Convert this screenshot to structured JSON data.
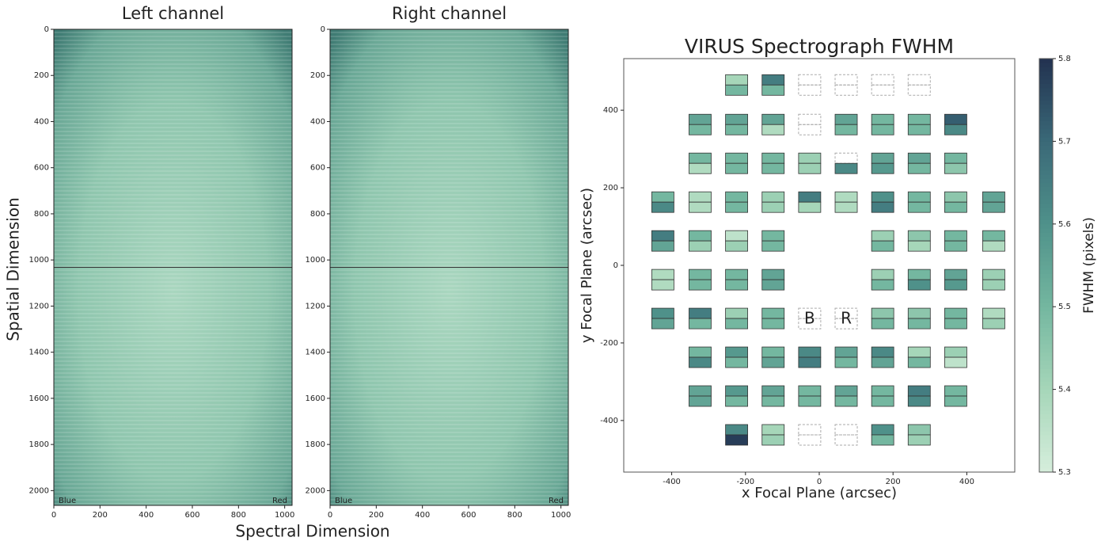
{
  "chart_data": [
    {
      "type": "image",
      "title": "Left channel",
      "xlabel": "Spectral Dimension",
      "ylabel": "Spatial Dimension",
      "xlim": [
        0,
        1032
      ],
      "ylim": [
        2064,
        0
      ],
      "xticks": [
        0,
        200,
        400,
        600,
        800,
        1000
      ],
      "yticks": [
        0,
        200,
        400,
        600,
        800,
        1000,
        1200,
        1400,
        1600,
        1800,
        2000
      ],
      "annotations": [
        {
          "text": "Blue",
          "color": "#2c3fe0"
        },
        {
          "text": "Red",
          "color": "#d62728"
        }
      ]
    },
    {
      "type": "image",
      "title": "Right channel",
      "xlim": [
        0,
        1032
      ],
      "ylim": [
        2064,
        0
      ],
      "xticks": [
        0,
        200,
        400,
        600,
        800,
        1000
      ],
      "yticks": [
        0,
        200,
        400,
        600,
        800,
        1000,
        1200,
        1400,
        1600,
        1800,
        2000
      ],
      "annotations": [
        {
          "text": "Blue",
          "color": "#2c3fe0"
        },
        {
          "text": "Red",
          "color": "#d62728"
        }
      ]
    },
    {
      "type": "ifu-grid",
      "title": "VIRUS Spectrograph FWHM",
      "xlabel": "x Focal Plane (arcsec)",
      "ylabel": "y Focal Plane (arcsec)",
      "colorbar_label": "FWHM (pixels)",
      "clim": [
        5.3,
        5.8
      ],
      "cticks": [
        5.3,
        5.4,
        5.5,
        5.6,
        5.7,
        5.8
      ],
      "colormap": [
        "#d6eedc",
        "#a6d6b9",
        "#74b7a0",
        "#4f918a",
        "#3a6978",
        "#223250"
      ],
      "xlim": [
        -530,
        530
      ],
      "ylim": [
        -533,
        533
      ],
      "xticks": [
        -400,
        -200,
        0,
        200,
        400
      ],
      "yticks": [
        -400,
        -200,
        0,
        200,
        400
      ],
      "annotations": [
        {
          "text": "B",
          "x": -26,
          "y": -137,
          "color": "#1f77b4"
        },
        {
          "text": "R",
          "x": 73,
          "y": -137,
          "color": "#e8141e"
        }
      ],
      "ifus": [
        {
          "x": -224,
          "y": 465,
          "fwhm": [
            5.4,
            5.5
          ]
        },
        {
          "x": -125,
          "y": 465,
          "fwhm": [
            5.65,
            5.5
          ]
        },
        {
          "x": -26,
          "y": 465,
          "fwhm": [
            null,
            null
          ]
        },
        {
          "x": 73,
          "y": 465,
          "fwhm": [
            null,
            null
          ]
        },
        {
          "x": 172,
          "y": 465,
          "fwhm": [
            null,
            null
          ]
        },
        {
          "x": 271,
          "y": 465,
          "fwhm": [
            null,
            null
          ]
        },
        {
          "x": -323,
          "y": 363,
          "fwhm": [
            5.55,
            5.5
          ]
        },
        {
          "x": -224,
          "y": 363,
          "fwhm": [
            5.55,
            5.5
          ]
        },
        {
          "x": -125,
          "y": 363,
          "fwhm": [
            5.55,
            5.38
          ]
        },
        {
          "x": -26,
          "y": 363,
          "fwhm": [
            null,
            null
          ]
        },
        {
          "x": 73,
          "y": 363,
          "fwhm": [
            5.55,
            5.5
          ]
        },
        {
          "x": 172,
          "y": 363,
          "fwhm": [
            5.5,
            5.5
          ]
        },
        {
          "x": 271,
          "y": 363,
          "fwhm": [
            5.5,
            5.5
          ]
        },
        {
          "x": 370,
          "y": 363,
          "fwhm": [
            5.72,
            5.62
          ]
        },
        {
          "x": -323,
          "y": 263,
          "fwhm": [
            5.5,
            5.38
          ]
        },
        {
          "x": -224,
          "y": 263,
          "fwhm": [
            5.5,
            5.5
          ]
        },
        {
          "x": -125,
          "y": 263,
          "fwhm": [
            5.5,
            5.5
          ]
        },
        {
          "x": -26,
          "y": 263,
          "fwhm": [
            5.42,
            5.42
          ]
        },
        {
          "x": 73,
          "y": 263,
          "fwhm": [
            null,
            5.62
          ]
        },
        {
          "x": 172,
          "y": 263,
          "fwhm": [
            5.55,
            5.58
          ]
        },
        {
          "x": 271,
          "y": 263,
          "fwhm": [
            5.55,
            5.5
          ]
        },
        {
          "x": 370,
          "y": 263,
          "fwhm": [
            5.5,
            5.45
          ]
        },
        {
          "x": -424,
          "y": 163,
          "fwhm": [
            5.5,
            5.62
          ]
        },
        {
          "x": -323,
          "y": 163,
          "fwhm": [
            5.38,
            5.38
          ]
        },
        {
          "x": -224,
          "y": 163,
          "fwhm": [
            5.5,
            5.5
          ]
        },
        {
          "x": -125,
          "y": 163,
          "fwhm": [
            5.42,
            5.42
          ]
        },
        {
          "x": -26,
          "y": 163,
          "fwhm": [
            5.65,
            5.4
          ]
        },
        {
          "x": 73,
          "y": 163,
          "fwhm": [
            5.38,
            5.38
          ]
        },
        {
          "x": 172,
          "y": 163,
          "fwhm": [
            5.6,
            5.65
          ]
        },
        {
          "x": 271,
          "y": 163,
          "fwhm": [
            5.5,
            5.5
          ]
        },
        {
          "x": 370,
          "y": 163,
          "fwhm": [
            5.45,
            5.5
          ]
        },
        {
          "x": 473,
          "y": 163,
          "fwhm": [
            5.55,
            5.55
          ]
        },
        {
          "x": -424,
          "y": 63,
          "fwhm": [
            5.65,
            5.55
          ]
        },
        {
          "x": -323,
          "y": 63,
          "fwhm": [
            5.5,
            5.42
          ]
        },
        {
          "x": -224,
          "y": 63,
          "fwhm": [
            5.35,
            5.42
          ]
        },
        {
          "x": -125,
          "y": 63,
          "fwhm": [
            5.5,
            5.5
          ]
        },
        {
          "x": 172,
          "y": 63,
          "fwhm": [
            5.42,
            5.5
          ]
        },
        {
          "x": 271,
          "y": 63,
          "fwhm": [
            5.45,
            5.4
          ]
        },
        {
          "x": 370,
          "y": 63,
          "fwhm": [
            5.5,
            5.5
          ]
        },
        {
          "x": 473,
          "y": 63,
          "fwhm": [
            5.5,
            5.38
          ]
        },
        {
          "x": -424,
          "y": -37,
          "fwhm": [
            5.38,
            5.38
          ]
        },
        {
          "x": -323,
          "y": -37,
          "fwhm": [
            5.5,
            5.5
          ]
        },
        {
          "x": -224,
          "y": -37,
          "fwhm": [
            5.5,
            5.5
          ]
        },
        {
          "x": -125,
          "y": -37,
          "fwhm": [
            5.55,
            5.55
          ]
        },
        {
          "x": 172,
          "y": -37,
          "fwhm": [
            5.42,
            5.5
          ]
        },
        {
          "x": 271,
          "y": -37,
          "fwhm": [
            5.5,
            5.6
          ]
        },
        {
          "x": 370,
          "y": -37,
          "fwhm": [
            5.55,
            5.58
          ]
        },
        {
          "x": 473,
          "y": -37,
          "fwhm": [
            5.42,
            5.42
          ]
        },
        {
          "x": -424,
          "y": -137,
          "fwhm": [
            5.6,
            5.55
          ]
        },
        {
          "x": -323,
          "y": -137,
          "fwhm": [
            5.65,
            5.5
          ]
        },
        {
          "x": -224,
          "y": -137,
          "fwhm": [
            5.42,
            5.5
          ]
        },
        {
          "x": -125,
          "y": -137,
          "fwhm": [
            5.5,
            5.5
          ]
        },
        {
          "x": -26,
          "y": -137,
          "fwhm": [
            null,
            null
          ]
        },
        {
          "x": 73,
          "y": -137,
          "fwhm": [
            null,
            null
          ]
        },
        {
          "x": 172,
          "y": -137,
          "fwhm": [
            5.45,
            5.5
          ]
        },
        {
          "x": 271,
          "y": -137,
          "fwhm": [
            5.45,
            5.5
          ]
        },
        {
          "x": 370,
          "y": -137,
          "fwhm": [
            5.5,
            5.5
          ]
        },
        {
          "x": 473,
          "y": -137,
          "fwhm": [
            5.38,
            5.42
          ]
        },
        {
          "x": -323,
          "y": -237,
          "fwhm": [
            5.5,
            5.62
          ]
        },
        {
          "x": -224,
          "y": -237,
          "fwhm": [
            5.58,
            5.5
          ]
        },
        {
          "x": -125,
          "y": -237,
          "fwhm": [
            5.5,
            5.55
          ]
        },
        {
          "x": -26,
          "y": -237,
          "fwhm": [
            5.62,
            5.65
          ]
        },
        {
          "x": 73,
          "y": -237,
          "fwhm": [
            5.55,
            5.5
          ]
        },
        {
          "x": 172,
          "y": -237,
          "fwhm": [
            5.62,
            5.55
          ]
        },
        {
          "x": 271,
          "y": -237,
          "fwhm": [
            5.4,
            5.5
          ]
        },
        {
          "x": 370,
          "y": -237,
          "fwhm": [
            5.42,
            5.35
          ]
        },
        {
          "x": -323,
          "y": -337,
          "fwhm": [
            5.55,
            5.55
          ]
        },
        {
          "x": -224,
          "y": -337,
          "fwhm": [
            5.58,
            5.5
          ]
        },
        {
          "x": -125,
          "y": -337,
          "fwhm": [
            5.55,
            5.5
          ]
        },
        {
          "x": -26,
          "y": -337,
          "fwhm": [
            5.5,
            5.5
          ]
        },
        {
          "x": 73,
          "y": -337,
          "fwhm": [
            5.55,
            5.5
          ]
        },
        {
          "x": 172,
          "y": -337,
          "fwhm": [
            5.5,
            5.5
          ]
        },
        {
          "x": 271,
          "y": -337,
          "fwhm": [
            5.65,
            5.62
          ]
        },
        {
          "x": 370,
          "y": -337,
          "fwhm": [
            5.5,
            5.5
          ]
        },
        {
          "x": -224,
          "y": -437,
          "fwhm": [
            5.62,
            5.78
          ]
        },
        {
          "x": -125,
          "y": -437,
          "fwhm": [
            5.4,
            5.42
          ]
        },
        {
          "x": -26,
          "y": -437,
          "fwhm": [
            null,
            null
          ]
        },
        {
          "x": 73,
          "y": -437,
          "fwhm": [
            null,
            null
          ]
        },
        {
          "x": 172,
          "y": -437,
          "fwhm": [
            5.6,
            5.5
          ]
        },
        {
          "x": 271,
          "y": -437,
          "fwhm": [
            5.45,
            5.42
          ]
        }
      ]
    }
  ]
}
